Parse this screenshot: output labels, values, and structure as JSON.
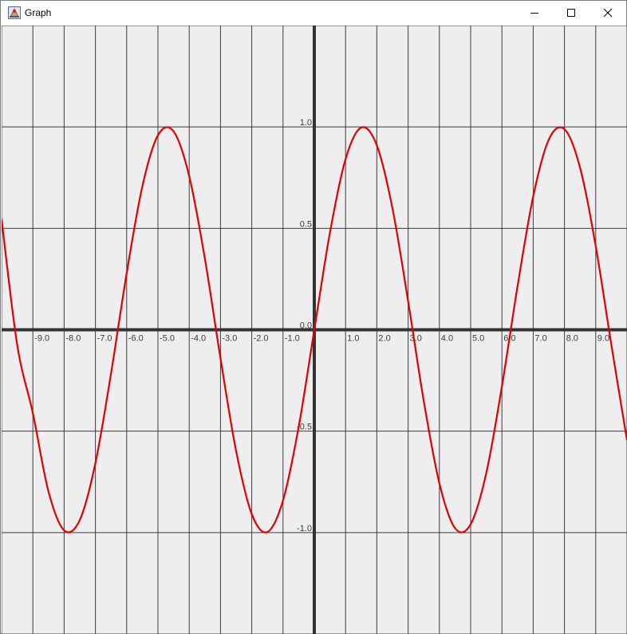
{
  "window": {
    "title": "Graph",
    "icons": {
      "app": "java-app-icon",
      "minimize": "minimize-icon",
      "maximize": "maximize-icon",
      "close": "close-icon"
    }
  },
  "chart_data": {
    "type": "line",
    "title": "",
    "xlabel": "",
    "ylabel": "",
    "xlim": [
      -10,
      10
    ],
    "ylim": [
      -1.5,
      1.5
    ],
    "grid": true,
    "x_ticks": [
      -9.0,
      -8.0,
      -7.0,
      -6.0,
      -5.0,
      -4.0,
      -3.0,
      -2.0,
      -1.0,
      1.0,
      2.0,
      3.0,
      4.0,
      5.0,
      6.0,
      7.0,
      8.0,
      9.0
    ],
    "x_tick_labels": [
      "-9.0",
      "-8.0",
      "-7.0",
      "-6.0",
      "-5.0",
      "-4.0",
      "-3.0",
      "-2.0",
      "-1.0",
      "1.0",
      "2.0",
      "3.0",
      "4.0",
      "5.0",
      "6.0",
      "7.0",
      "8.0",
      "9.0"
    ],
    "y_ticks": [
      1.0,
      0.5,
      0.0,
      -0.5,
      -1.0
    ],
    "y_tick_labels": [
      "1.0",
      "0.5",
      "0.0",
      "-0.5",
      "-1.0"
    ],
    "series": [
      {
        "color": "#e00000",
        "x": [
          -10,
          -9.5,
          -9,
          -8.5,
          -8,
          -7.5,
          -7,
          -6.5,
          -6,
          -5.5,
          -5,
          -4.5,
          -4,
          -3.5,
          -3,
          -2.5,
          -2,
          -1.5,
          -1,
          -0.5,
          0,
          0.5,
          1,
          1.5,
          2,
          2.5,
          3,
          3.5,
          4,
          4.5,
          5,
          5.5,
          6,
          6.5,
          7,
          7.5,
          8,
          8.5,
          9,
          9.5,
          10
        ],
        "y": [
          0.544,
          -0.075,
          -0.412,
          -0.798,
          -0.989,
          -0.938,
          -0.657,
          -0.215,
          0.279,
          0.706,
          0.959,
          0.978,
          0.757,
          0.351,
          -0.141,
          -0.598,
          -0.909,
          -0.997,
          -0.841,
          -0.479,
          0.0,
          0.479,
          0.841,
          0.997,
          0.909,
          0.598,
          0.141,
          -0.351,
          -0.757,
          -0.978,
          -0.959,
          -0.706,
          -0.279,
          0.215,
          0.657,
          0.938,
          0.989,
          0.798,
          0.412,
          -0.075,
          -0.544
        ]
      }
    ]
  }
}
